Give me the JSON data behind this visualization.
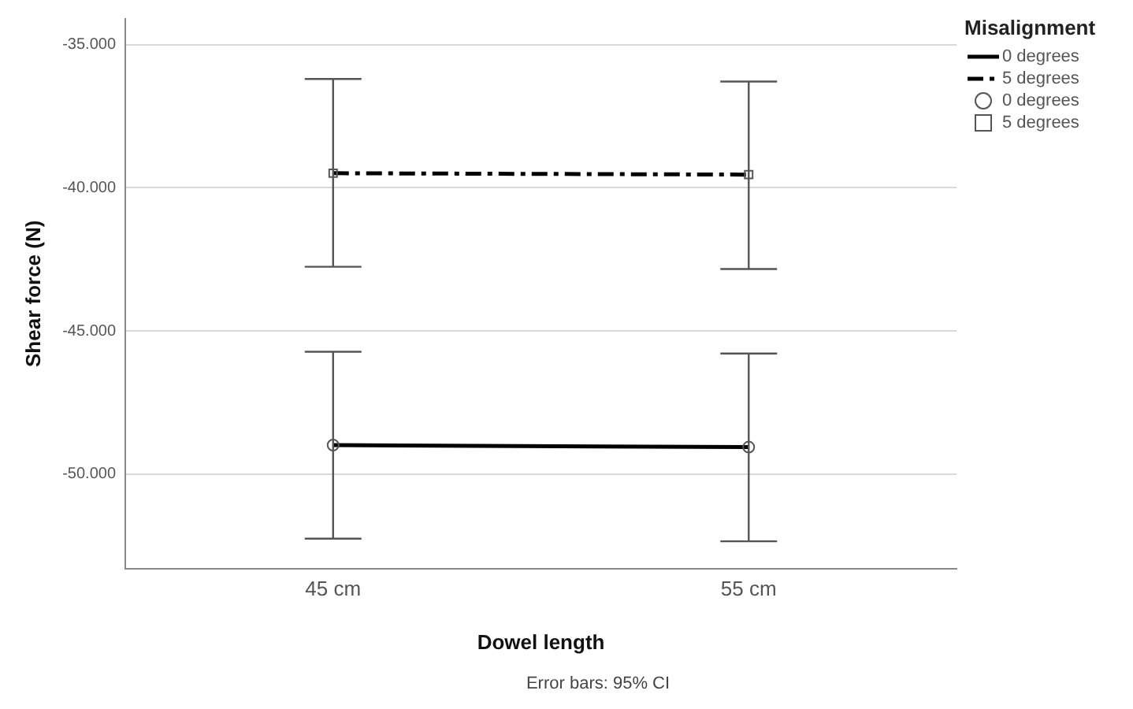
{
  "chart_data": {
    "type": "line",
    "xlabel": "Dowel length",
    "ylabel": "Shear force (N)",
    "legend_title": "Misalignment",
    "categories": [
      "45 cm",
      "55 cm"
    ],
    "series": [
      {
        "name": "0 degrees",
        "color": "#000000",
        "values": [
          -48990,
          -49060
        ],
        "errors": [
          [
            -52260,
            -45730
          ],
          [
            -52350,
            -45790
          ]
        ],
        "line_style": "solid",
        "marker": "circle"
      },
      {
        "name": "5 degrees",
        "color": "#000000",
        "values": [
          -39490,
          -39540
        ],
        "errors": [
          [
            -42760,
            -36200
          ],
          [
            -42840,
            -36290
          ]
        ],
        "line_style": "dashdot",
        "marker": "square"
      }
    ],
    "ylim": [
      -53300,
      -34100
    ],
    "yticks": [
      {
        "value": -35000,
        "label": "-35.000"
      },
      {
        "value": -40000,
        "label": "-40.000"
      },
      {
        "value": -45000,
        "label": "-45.000"
      },
      {
        "value": -50000,
        "label": "-50.000"
      }
    ],
    "grid": "y",
    "legend": "top right",
    "annotations": [
      "Error bars: 95% CI"
    ]
  }
}
